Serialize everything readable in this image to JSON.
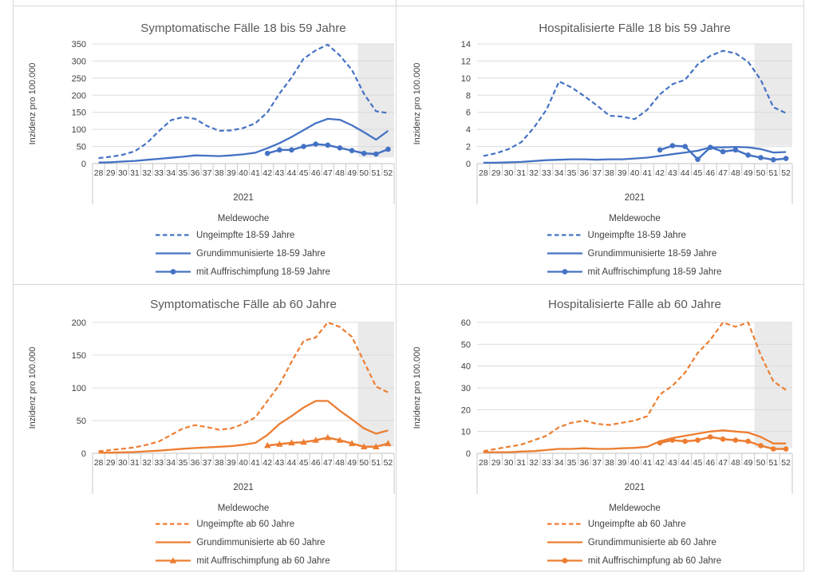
{
  "figure": {
    "background": "#ffffff",
    "panel_border_color": "#d9d9d9"
  },
  "colors": {
    "blue_accent": "#4472C4",
    "orange_accent": "#ED7D31",
    "gridline": "#dcdcdc",
    "axis_line": "#bfbfbf",
    "tick_line": "#c9c9c9",
    "band_fill": "#d9d9d9",
    "title_text": "#595959",
    "tick_text": "#404040",
    "legend_text": "#404040"
  },
  "x_axis": {
    "weeks": [
      "28",
      "29",
      "30",
      "31",
      "32",
      "33",
      "34",
      "35",
      "36",
      "37",
      "38",
      "39",
      "40",
      "41",
      "42",
      "43",
      "44",
      "45",
      "46",
      "47",
      "48",
      "49",
      "50",
      "51",
      "52"
    ],
    "year_label": "2021",
    "axis_title": "Meldewoche"
  },
  "y_axis_title": "Inzidenz pro 100.000",
  "shaded_band": {
    "start_week": 50,
    "end_week": 52,
    "note": "grey band over reporting weeks 50-52"
  },
  "chart_data": [
    {
      "type": "line",
      "title": "Symptomatische Fälle 18 bis 59 Jahre",
      "color": "#4472C4",
      "ylabel": "Inzidenz pro 100.000",
      "xlabel": "Meldewoche",
      "ylim": [
        0,
        350
      ],
      "ytick_step": 50,
      "band_bottom_value": 18,
      "series": [
        {
          "name": "Ungeimpfte 18-59 Jahre",
          "style": "dashed",
          "values": [
            16,
            20,
            26,
            36,
            60,
            95,
            127,
            136,
            131,
            110,
            96,
            97,
            104,
            118,
            150,
            205,
            252,
            307,
            331,
            348,
            316,
            274,
            204,
            153,
            148
          ]
        },
        {
          "name": "Grundimmunisierte 18-59 Jahre",
          "style": "solid",
          "values": [
            3,
            4,
            6,
            8,
            11,
            14,
            17,
            20,
            24,
            23,
            22,
            24,
            27,
            32,
            45,
            60,
            78,
            98,
            118,
            131,
            128,
            112,
            92,
            70,
            96
          ]
        },
        {
          "name": "mit Auffrischimpfung 18-59 Jahre",
          "style": "marker",
          "marker": "circle",
          "values": [
            null,
            null,
            null,
            null,
            null,
            null,
            null,
            null,
            null,
            null,
            null,
            null,
            null,
            null,
            30,
            40,
            40,
            50,
            57,
            54,
            46,
            38,
            30,
            28,
            42
          ]
        }
      ]
    },
    {
      "type": "line",
      "title": "Hospitalisierte Fälle 18 bis 59 Jahre",
      "color": "#4472C4",
      "ylabel": "Inzidenz pro 100.000",
      "xlabel": "Meldewoche",
      "ylim": [
        0,
        14
      ],
      "ytick_step": 2,
      "band_bottom_value": 2.1,
      "series": [
        {
          "name": "Ungeimpfte 18-59 Jahre",
          "style": "dashed",
          "values": [
            0.9,
            1.2,
            1.7,
            2.5,
            4.2,
            6.3,
            9.6,
            8.9,
            7.9,
            6.8,
            5.6,
            5.5,
            5.2,
            6.3,
            8.1,
            9.3,
            9.8,
            11.6,
            12.6,
            13.2,
            12.9,
            11.9,
            9.8,
            6.6,
            5.9
          ]
        },
        {
          "name": "Grundimmunisierte 18-59 Jahre",
          "style": "solid",
          "values": [
            0.1,
            0.1,
            0.15,
            0.2,
            0.3,
            0.4,
            0.45,
            0.5,
            0.5,
            0.45,
            0.5,
            0.5,
            0.6,
            0.7,
            0.9,
            1.1,
            1.3,
            1.5,
            1.9,
            1.9,
            1.95,
            1.9,
            1.7,
            1.3,
            1.35
          ]
        },
        {
          "name": "mit Auffrischimpfung 18-59 Jahre",
          "style": "marker",
          "marker": "circle",
          "values": [
            null,
            null,
            null,
            null,
            null,
            null,
            null,
            null,
            null,
            null,
            null,
            null,
            null,
            null,
            1.6,
            2.1,
            2.0,
            0.5,
            1.9,
            1.4,
            1.6,
            1.0,
            0.7,
            0.45,
            0.6
          ]
        }
      ]
    },
    {
      "type": "line",
      "title": "Symptomatische Fälle ab 60 Jahre",
      "color": "#ED7D31",
      "ylabel": "Inzidenz pro 100.000",
      "xlabel": "Meldewoche",
      "ylim": [
        0,
        200
      ],
      "ytick_step": 50,
      "band_bottom_value": 10,
      "series": [
        {
          "name": "Ungeimpfte ab 60 Jahre",
          "style": "dashed",
          "values": [
            3,
            5,
            7,
            9,
            13,
            18,
            28,
            38,
            43,
            40,
            36,
            38,
            45,
            55,
            80,
            105,
            140,
            172,
            177,
            200,
            193,
            178,
            140,
            102,
            93
          ]
        },
        {
          "name": "Grundimmunisierte ab 60 Jahre",
          "style": "solid",
          "values": [
            1,
            1,
            1.5,
            2,
            3,
            4,
            5.5,
            7,
            8,
            9,
            10,
            11,
            13,
            16,
            28,
            45,
            57,
            70,
            80,
            80,
            65,
            52,
            38,
            30,
            35
          ]
        },
        {
          "name": "mit Auffrischimpfung ab 60 Jahre",
          "style": "marker",
          "marker": "triangle",
          "values": [
            null,
            null,
            null,
            null,
            null,
            null,
            null,
            null,
            null,
            null,
            null,
            null,
            null,
            null,
            12,
            14,
            16,
            17,
            20,
            24,
            20,
            15,
            10,
            10,
            15
          ]
        }
      ]
    },
    {
      "type": "line",
      "title": "Hospitalisierte Fälle ab 60 Jahre",
      "color": "#ED7D31",
      "ylabel": "Inzidenz pro 100.000",
      "xlabel": "Meldewoche",
      "ylim": [
        0,
        60
      ],
      "ytick_step": 10,
      "band_bottom_value": 2.5,
      "series": [
        {
          "name": "Ungeimpfte ab 60 Jahre",
          "style": "dashed",
          "values": [
            1,
            2,
            3,
            4,
            6,
            8,
            12,
            14,
            15,
            13.5,
            13,
            14,
            15,
            17,
            27,
            31,
            37,
            46,
            52,
            60,
            58,
            60,
            45,
            33,
            29
          ]
        },
        {
          "name": "Grundimmunisierte ab 60 Jahre",
          "style": "solid",
          "values": [
            0.5,
            0.5,
            0.5,
            0.8,
            1,
            1.5,
            2,
            2,
            2.3,
            2,
            2,
            2.3,
            2.5,
            3,
            5.5,
            7,
            8,
            9,
            10,
            10.5,
            10,
            9.5,
            7.5,
            4.5,
            4.5
          ]
        },
        {
          "name": "mit Auffrischimpfung ab 60 Jahre",
          "style": "marker",
          "marker": "circle",
          "values": [
            null,
            null,
            null,
            null,
            null,
            null,
            null,
            null,
            null,
            null,
            null,
            null,
            null,
            null,
            4.8,
            6,
            5.5,
            6,
            7.5,
            6.5,
            6,
            5.5,
            3.5,
            2,
            2
          ]
        }
      ]
    }
  ]
}
